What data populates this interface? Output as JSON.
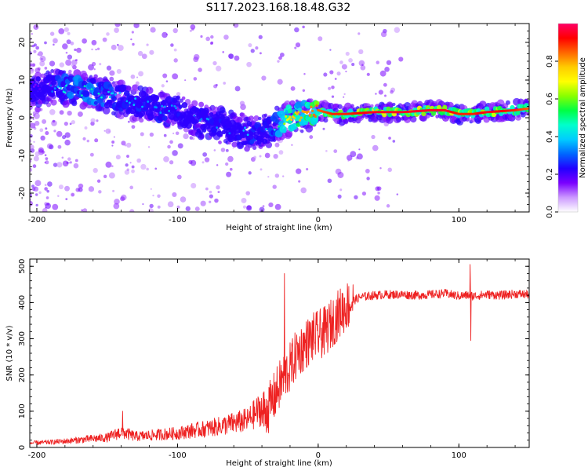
{
  "title": "S117.2023.168.18.48.G32",
  "chart_data": [
    {
      "type": "heatmap",
      "title": "S117.2023.168.18.48.G32",
      "xlabel": "Height of straight line (km)",
      "ylabel": "Frequency (Hz)",
      "xlim": [
        -205,
        150
      ],
      "ylim": [
        -25,
        25
      ],
      "xticks": [
        -200,
        -100,
        0,
        100
      ],
      "yticks": [
        -20,
        -10,
        0,
        10,
        20
      ],
      "colorbar": {
        "label": "Normalized spectral amplitude",
        "range": [
          0,
          1
        ],
        "ticks": [
          "0.0",
          "0.2",
          "0.4",
          "0.6",
          "0.8"
        ],
        "colors": [
          "#ffffff",
          "#cc99ff",
          "#7a00ff",
          "#2200ff",
          "#0066ff",
          "#00ccff",
          "#00ffcc",
          "#00ff44",
          "#88ff00",
          "#ffff00",
          "#ffcc00",
          "#ff6600",
          "#ff0000",
          "#ff0066"
        ]
      },
      "ridge": {
        "x": [
          -200,
          -180,
          -160,
          -140,
          -130,
          -120,
          -110,
          -100,
          -90,
          -80,
          -70,
          -60,
          -50,
          -40,
          -30,
          -20,
          -10,
          0,
          10,
          20,
          40,
          60,
          80,
          90,
          100,
          110,
          120,
          140,
          150
        ],
        "freq": [
          8,
          8,
          7,
          5,
          4,
          3,
          2,
          2,
          0,
          -1,
          -2,
          -3,
          -4,
          -4,
          -2,
          0,
          1,
          2,
          1,
          1,
          1.5,
          1.5,
          2,
          2,
          1,
          1,
          1.5,
          2,
          2.5
        ],
        "amplitude": [
          0.15,
          0.45,
          0.5,
          0.35,
          0.4,
          0.35,
          0.35,
          0.35,
          0.3,
          0.35,
          0.35,
          0.3,
          0.4,
          0.35,
          0.45,
          0.75,
          0.8,
          0.85,
          0.9,
          0.9,
          0.95,
          0.95,
          0.95,
          0.95,
          0.9,
          0.9,
          0.95,
          0.9,
          0.85
        ]
      }
    },
    {
      "type": "line",
      "xlabel": "Height of straight line (km)",
      "ylabel": "SNR (10 * v/v)",
      "xlim": [
        -205,
        150
      ],
      "ylim": [
        0,
        520
      ],
      "xticks": [
        -200,
        -100,
        0,
        100
      ],
      "yticks": [
        0,
        100,
        200,
        300,
        400,
        500
      ],
      "color": "#ee2222",
      "series": [
        {
          "x": [
            -205,
            -190,
            -180,
            -170,
            -160,
            -150,
            -140,
            -130,
            -120,
            -110,
            -100,
            -90,
            -80,
            -70,
            -60,
            -50,
            -40,
            -35,
            -30,
            -25,
            -20,
            -15,
            -10,
            -5,
            0,
            5,
            10,
            15,
            20,
            25,
            30,
            40,
            50,
            60,
            70,
            80,
            90,
            100,
            105,
            108,
            110,
            115,
            120,
            130,
            140,
            150
          ],
          "values": [
            10,
            12,
            14,
            17,
            20,
            22,
            35,
            25,
            27,
            30,
            32,
            38,
            42,
            48,
            55,
            62,
            90,
            110,
            150,
            190,
            220,
            260,
            280,
            300,
            310,
            320,
            345,
            370,
            390,
            405,
            415,
            420,
            422,
            422,
            420,
            422,
            425,
            418,
            420,
            420,
            418,
            420,
            422,
            420,
            424,
            422
          ]
        }
      ],
      "spikes": [
        {
          "x": -139,
          "value": 100
        },
        {
          "x": -24,
          "value": 480
        },
        {
          "x": 108,
          "value": 505
        },
        {
          "x": 108.5,
          "value": 295
        }
      ]
    }
  ]
}
